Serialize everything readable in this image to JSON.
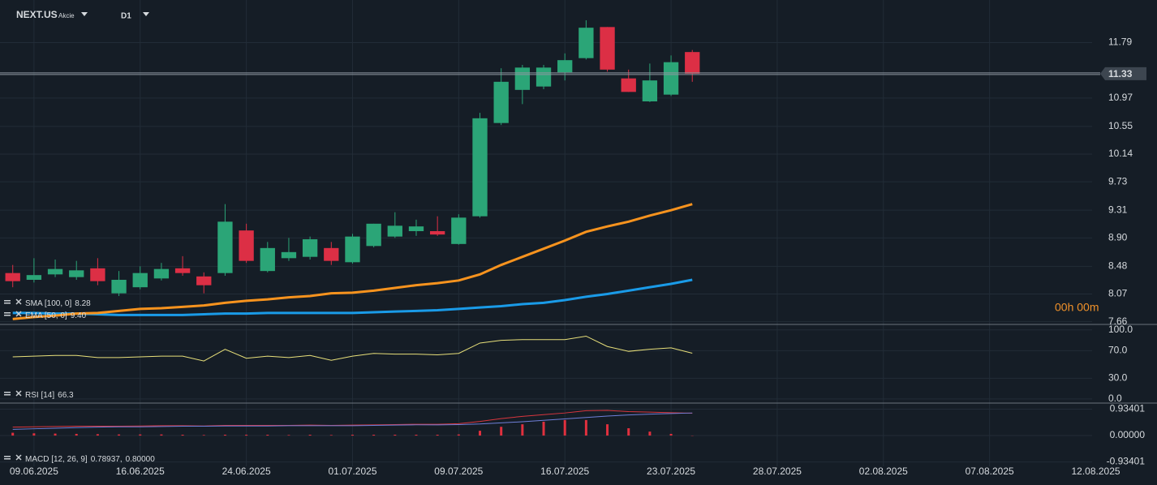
{
  "chart_data": {
    "type": "candlestick",
    "symbol": "NEXT.US",
    "asset_class": "Akcie",
    "timeframe": "D1",
    "countdown": "00h 00m",
    "xlim": [
      -0.6,
      51.4
    ],
    "xticks": [
      {
        "value": 1,
        "label": "09.06.2025"
      },
      {
        "value": 6,
        "label": "16.06.2025"
      },
      {
        "value": 11,
        "label": "24.06.2025"
      },
      {
        "value": 16,
        "label": "01.07.2025"
      },
      {
        "value": 21,
        "label": "09.07.2025"
      },
      {
        "value": 26,
        "label": "16.07.2025"
      },
      {
        "value": 31,
        "label": "23.07.2025"
      },
      {
        "value": 36,
        "label": "28.07.2025"
      },
      {
        "value": 41,
        "label": "02.08.2025"
      },
      {
        "value": 46,
        "label": "07.08.2025"
      },
      {
        "value": 51,
        "label": "12.08.2025"
      }
    ],
    "ylim": [
      7.62,
      12.42
    ],
    "yticks": [
      11.79,
      10.97,
      10.55,
      10.14,
      9.73,
      9.31,
      {
        "value": 8.9,
        "label": "8.90"
      },
      8.48,
      8.07,
      7.66
    ],
    "grid": true,
    "up_color": "#2ba577",
    "down_color": "#dc2f45",
    "last_price": 11.33,
    "open": [
      8.38,
      8.28,
      8.36,
      8.32,
      8.45,
      8.08,
      8.17,
      8.3,
      8.45,
      8.33,
      8.38,
      9.01,
      8.41,
      8.6,
      8.62,
      8.75,
      8.54,
      8.78,
      8.92,
      9.0,
      9.0,
      8.81,
      9.22,
      10.6,
      11.09,
      11.14,
      11.35,
      11.56,
      12.02,
      11.26,
      10.92,
      11.02,
      11.65
    ],
    "high": [
      8.5,
      8.6,
      8.58,
      8.56,
      8.6,
      8.41,
      8.48,
      8.53,
      8.63,
      8.39,
      9.4,
      9.11,
      8.84,
      8.9,
      8.92,
      8.84,
      8.96,
      9.11,
      9.28,
      9.17,
      9.22,
      9.25,
      10.75,
      11.41,
      11.46,
      11.46,
      11.63,
      12.12,
      12.02,
      11.39,
      11.48,
      11.6,
      11.68
    ],
    "low": [
      8.17,
      8.24,
      8.32,
      8.28,
      8.2,
      8.04,
      8.14,
      8.27,
      8.34,
      8.08,
      8.34,
      8.53,
      8.39,
      8.56,
      8.58,
      8.5,
      8.52,
      8.76,
      8.9,
      8.93,
      8.93,
      8.8,
      9.2,
      10.57,
      10.88,
      11.1,
      11.23,
      11.54,
      11.36,
      11.06,
      10.91,
      11.0,
      11.21
    ],
    "close": [
      8.26,
      8.35,
      8.44,
      8.42,
      8.26,
      8.28,
      8.38,
      8.44,
      8.38,
      8.2,
      9.14,
      8.56,
      8.75,
      8.69,
      8.88,
      8.56,
      8.92,
      9.11,
      9.08,
      9.07,
      8.95,
      9.2,
      10.67,
      11.21,
      11.42,
      11.42,
      11.53,
      12.01,
      11.39,
      11.06,
      11.23,
      11.5,
      11.33
    ],
    "series": [
      {
        "name": "SMA [100, 0]",
        "color": "#1a9be8",
        "current": 8.28,
        "values": [
          7.79,
          7.79,
          7.78,
          7.78,
          7.77,
          7.76,
          7.76,
          7.76,
          7.76,
          7.77,
          7.78,
          7.78,
          7.79,
          7.79,
          7.79,
          7.79,
          7.79,
          7.8,
          7.81,
          7.82,
          7.83,
          7.85,
          7.87,
          7.89,
          7.92,
          7.94,
          7.98,
          8.03,
          8.07,
          8.12,
          8.17,
          8.22,
          8.28
        ]
      },
      {
        "name": "EMA [50, 0]",
        "color": "#f7931e",
        "current": {
          "value": 9.4,
          "label": "9.40"
        },
        "values": [
          7.7,
          7.73,
          7.75,
          7.78,
          7.79,
          7.82,
          7.85,
          7.86,
          7.88,
          7.9,
          7.94,
          7.97,
          7.99,
          8.02,
          8.04,
          8.08,
          8.09,
          8.12,
          8.16,
          8.2,
          8.23,
          8.27,
          8.36,
          8.5,
          8.62,
          8.74,
          8.86,
          8.99,
          9.07,
          9.14,
          9.23,
          9.31,
          9.4
        ]
      }
    ],
    "rsi": {
      "name": "RSI [14]",
      "color": "#e8e07a",
      "current": 66.3,
      "ylim": [
        -6,
        108
      ],
      "yticks": [
        {
          "value": 100,
          "label": "100.0"
        },
        {
          "value": 70,
          "label": "70.0"
        },
        {
          "value": 30,
          "label": "30.0"
        },
        {
          "value": 0,
          "label": "0.0"
        }
      ],
      "values": [
        61,
        62,
        63,
        63,
        60,
        60,
        61,
        62,
        62,
        55,
        72,
        59,
        62,
        60,
        63,
        56,
        62,
        66,
        65,
        65,
        64,
        66,
        81,
        85,
        86,
        86,
        86,
        91,
        76,
        69,
        72,
        74,
        66.3
      ]
    },
    "macd": {
      "name": "MACD [12, 26, 9]",
      "ylim": [
        -1.09,
        1.15
      ],
      "yticks": [
        {
          "value": 0.93401,
          "label": "0.93401"
        },
        {
          "value": 0,
          "label": "0.00000"
        },
        {
          "value": -0.93401,
          "label": "-0.93401"
        }
      ],
      "series": [
        {
          "color": "#d9363e",
          "current": {
            "value": 0.78937,
            "label": "0.78937,"
          },
          "values": [
            0.3,
            0.31,
            0.32,
            0.33,
            0.33,
            0.33,
            0.34,
            0.35,
            0.35,
            0.34,
            0.36,
            0.36,
            0.36,
            0.36,
            0.37,
            0.36,
            0.37,
            0.38,
            0.39,
            0.4,
            0.4,
            0.42,
            0.5,
            0.6,
            0.68,
            0.74,
            0.8,
            0.88,
            0.89,
            0.85,
            0.83,
            0.81,
            0.78937
          ]
        },
        {
          "color": "#6f7fd8",
          "current": {
            "value": 0.8,
            "label": "0.80000"
          },
          "values": [
            0.22,
            0.24,
            0.26,
            0.28,
            0.3,
            0.31,
            0.31,
            0.32,
            0.33,
            0.33,
            0.34,
            0.34,
            0.34,
            0.35,
            0.35,
            0.35,
            0.35,
            0.36,
            0.37,
            0.38,
            0.38,
            0.39,
            0.41,
            0.45,
            0.49,
            0.54,
            0.59,
            0.64,
            0.69,
            0.73,
            0.76,
            0.78,
            0.8
          ]
        }
      ],
      "histogram": {
        "color": "#e0303e",
        "values": [
          0.1,
          0.08,
          0.07,
          0.06,
          0.05,
          0.04,
          0.04,
          0.04,
          0.03,
          0.02,
          0.03,
          0.03,
          0.03,
          0.02,
          0.03,
          0.02,
          0.03,
          0.03,
          0.03,
          0.03,
          0.03,
          0.04,
          0.17,
          0.31,
          0.4,
          0.49,
          0.55,
          0.55,
          0.4,
          0.26,
          0.14,
          0.06,
          -0.01
        ]
      }
    }
  }
}
